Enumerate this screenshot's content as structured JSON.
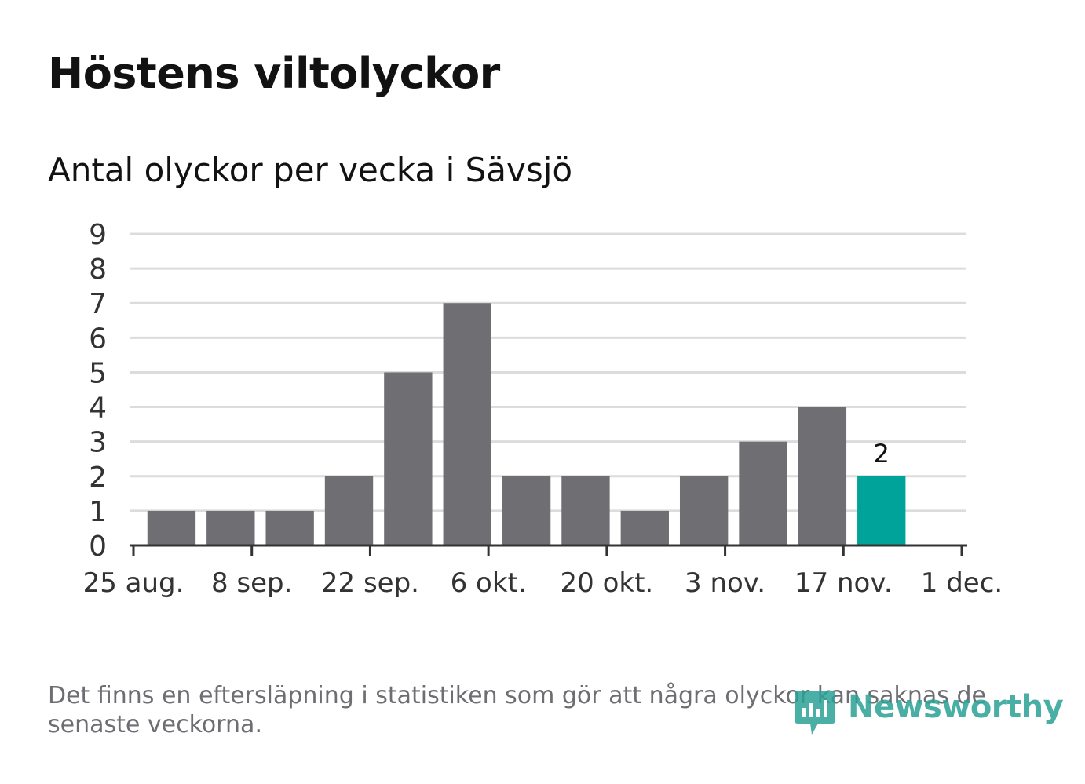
{
  "header": {
    "title": "Höstens viltolyckor",
    "subtitle": "Antal olyckor per vecka i Sävsjö"
  },
  "footer": {
    "note": "Det finns en eftersläpning i statistiken som gör att några olyckor kan saknas de senaste veckorna.",
    "logo_text": "Newsworthy"
  },
  "colors": {
    "bar": "#6f6e73",
    "highlight": "#00a39a",
    "grid": "#dcdcdc",
    "axis": "#333333",
    "brand": "#2aa296"
  },
  "chart_data": {
    "type": "bar",
    "title": "Höstens viltolyckor",
    "subtitle": "Antal olyckor per vecka i Sävsjö",
    "xlabel": "",
    "ylabel": "",
    "x_axis": "date",
    "xlim": [
      "2024-08-25",
      "2024-12-01"
    ],
    "ylim": [
      0,
      9
    ],
    "y_ticks": [
      "0",
      "1",
      "2",
      "3",
      "4",
      "5",
      "6",
      "7",
      "8",
      "9"
    ],
    "x_ticks": [
      {
        "date": "2024-08-25",
        "label": "25 aug."
      },
      {
        "date": "2024-09-08",
        "label": "8 sep."
      },
      {
        "date": "2024-09-22",
        "label": "22 sep."
      },
      {
        "date": "2024-10-06",
        "label": "6 okt."
      },
      {
        "date": "2024-10-20",
        "label": "20 okt."
      },
      {
        "date": "2024-11-03",
        "label": "3 nov."
      },
      {
        "date": "2024-11-17",
        "label": "17 nov."
      },
      {
        "date": "2024-12-01",
        "label": "1 dec."
      }
    ],
    "grid": true,
    "bars": [
      {
        "week_start": "2024-08-26",
        "value": 1
      },
      {
        "week_start": "2024-09-02",
        "value": 1
      },
      {
        "week_start": "2024-09-09",
        "value": 1
      },
      {
        "week_start": "2024-09-16",
        "value": 2
      },
      {
        "week_start": "2024-09-23",
        "value": 5
      },
      {
        "week_start": "2024-09-30",
        "value": 7
      },
      {
        "week_start": "2024-10-07",
        "value": 2
      },
      {
        "week_start": "2024-10-14",
        "value": 2
      },
      {
        "week_start": "2024-10-21",
        "value": 1
      },
      {
        "week_start": "2024-10-28",
        "value": 2
      },
      {
        "week_start": "2024-11-04",
        "value": 3
      },
      {
        "week_start": "2024-11-11",
        "value": 4
      },
      {
        "week_start": "2024-11-18",
        "value": 2,
        "highlight": true,
        "label": "2"
      }
    ]
  }
}
